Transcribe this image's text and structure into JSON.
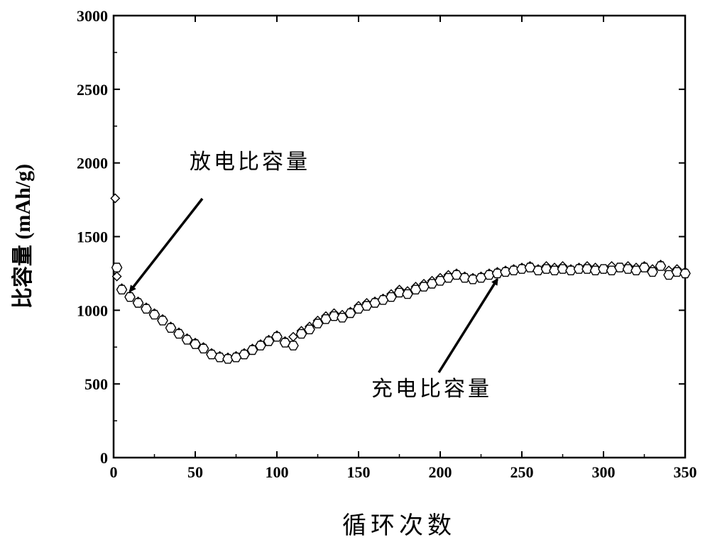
{
  "chart_data": {
    "type": "scatter",
    "xlabel": "循环次数",
    "ylabel": "比容量 (mAh/g)",
    "xlim": [
      0,
      350
    ],
    "ylim": [
      0,
      3000
    ],
    "xticks": [
      0,
      50,
      100,
      150,
      200,
      250,
      300,
      350
    ],
    "yticks": [
      0,
      500,
      1000,
      1500,
      2000,
      2500,
      3000
    ],
    "grid": false,
    "annotations": [
      {
        "text": "放电比容量",
        "target": "discharge"
      },
      {
        "text": "充电比容量",
        "target": "charge"
      }
    ],
    "series": [
      {
        "id": "discharge",
        "marker": "diamond",
        "color": "#000000",
        "x": [
          1,
          2,
          5,
          10,
          15,
          20,
          25,
          30,
          35,
          40,
          45,
          50,
          55,
          60,
          65,
          70,
          75,
          80,
          85,
          90,
          95,
          100,
          105,
          110,
          115,
          120,
          125,
          130,
          135,
          140,
          145,
          150,
          155,
          160,
          165,
          170,
          175,
          180,
          185,
          190,
          195,
          200,
          205,
          210,
          215,
          220,
          225,
          230,
          235,
          240,
          245,
          250,
          255,
          260,
          265,
          270,
          275,
          280,
          285,
          290,
          295,
          300,
          305,
          310,
          315,
          320,
          325,
          330,
          335,
          340,
          345,
          350
        ],
        "y": [
          1760,
          1230,
          1150,
          1100,
          1060,
          1020,
          980,
          940,
          890,
          850,
          810,
          780,
          750,
          710,
          690,
          680,
          690,
          710,
          740,
          770,
          800,
          830,
          790,
          820,
          860,
          890,
          930,
          960,
          980,
          970,
          990,
          1030,
          1050,
          1060,
          1080,
          1110,
          1140,
          1130,
          1160,
          1180,
          1200,
          1220,
          1240,
          1250,
          1230,
          1220,
          1230,
          1250,
          1260,
          1270,
          1280,
          1290,
          1300,
          1280,
          1300,
          1290,
          1300,
          1280,
          1290,
          1300,
          1290,
          1280,
          1300,
          1290,
          1300,
          1290,
          1300,
          1280,
          1310,
          1270,
          1280,
          1260
        ]
      },
      {
        "id": "charge",
        "marker": "hexagon",
        "color": "#000000",
        "x": [
          2,
          5,
          10,
          15,
          20,
          25,
          30,
          35,
          40,
          45,
          50,
          55,
          60,
          65,
          70,
          75,
          80,
          85,
          90,
          95,
          100,
          105,
          110,
          115,
          120,
          125,
          130,
          135,
          140,
          145,
          150,
          155,
          160,
          165,
          170,
          175,
          180,
          185,
          190,
          195,
          200,
          205,
          210,
          215,
          220,
          225,
          230,
          235,
          240,
          245,
          250,
          255,
          260,
          265,
          270,
          275,
          280,
          285,
          290,
          295,
          300,
          305,
          310,
          315,
          320,
          325,
          330,
          335,
          340,
          345,
          350
        ],
        "y": [
          1290,
          1140,
          1090,
          1050,
          1010,
          970,
          930,
          880,
          840,
          800,
          770,
          740,
          700,
          680,
          670,
          680,
          700,
          730,
          760,
          790,
          820,
          780,
          760,
          840,
          870,
          910,
          940,
          960,
          950,
          980,
          1010,
          1030,
          1050,
          1070,
          1090,
          1120,
          1110,
          1140,
          1160,
          1180,
          1200,
          1220,
          1240,
          1220,
          1210,
          1220,
          1240,
          1250,
          1260,
          1270,
          1280,
          1290,
          1270,
          1280,
          1270,
          1280,
          1270,
          1280,
          1280,
          1270,
          1280,
          1270,
          1290,
          1280,
          1270,
          1290,
          1260,
          1300,
          1240,
          1260,
          1250
        ]
      }
    ]
  }
}
